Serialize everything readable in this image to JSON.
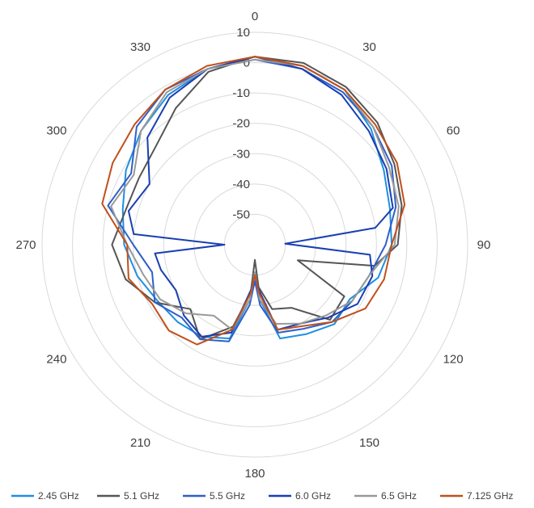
{
  "chart_data": {
    "type": "radar",
    "theta_labels": [
      "0",
      "30",
      "60",
      "90",
      "120",
      "150",
      "180",
      "210",
      "240",
      "270",
      "300",
      "330"
    ],
    "r_ticks": [
      "10",
      "0",
      "-10",
      "-20",
      "-30",
      "-40",
      "-50"
    ],
    "rlim": [
      -60,
      10
    ],
    "grid": true,
    "legend_position": "bottom",
    "series": [
      {
        "name": "2.45 GHz",
        "color": "#1f8fe0",
        "points": [
          [
            0,
            2
          ],
          [
            15,
            1
          ],
          [
            30,
            -1
          ],
          [
            45,
            -6
          ],
          [
            60,
            -11
          ],
          [
            75,
            -14
          ],
          [
            90,
            -15
          ],
          [
            105,
            -18
          ],
          [
            120,
            -24
          ],
          [
            135,
            -23
          ],
          [
            150,
            -26
          ],
          [
            165,
            -28
          ],
          [
            175,
            -42
          ],
          [
            180,
            -50
          ],
          [
            185,
            -42
          ],
          [
            195,
            -28
          ],
          [
            210,
            -25
          ],
          [
            225,
            -24
          ],
          [
            240,
            -23
          ],
          [
            255,
            -20
          ],
          [
            270,
            -17
          ],
          [
            285,
            -15
          ],
          [
            300,
            -11
          ],
          [
            315,
            -7
          ],
          [
            330,
            -3
          ],
          [
            345,
            0
          ]
        ]
      },
      {
        "name": "5.1 GHz",
        "color": "#555555",
        "points": [
          [
            0,
            2
          ],
          [
            15,
            2
          ],
          [
            30,
            0
          ],
          [
            45,
            -3
          ],
          [
            60,
            -7
          ],
          [
            75,
            -10
          ],
          [
            90,
            -13
          ],
          [
            100,
            -20
          ],
          [
            110,
            -45
          ],
          [
            120,
            -26
          ],
          [
            135,
            -25
          ],
          [
            150,
            -36
          ],
          [
            165,
            -38
          ],
          [
            175,
            -46
          ],
          [
            180,
            -55
          ],
          [
            185,
            -44
          ],
          [
            195,
            -32
          ],
          [
            210,
            -24
          ],
          [
            225,
            -30
          ],
          [
            240,
            -22
          ],
          [
            255,
            -16
          ],
          [
            270,
            -13
          ],
          [
            285,
            -16
          ],
          [
            300,
            -16
          ],
          [
            315,
            -14
          ],
          [
            330,
            -8
          ],
          [
            345,
            -1
          ]
        ]
      },
      {
        "name": "5.5 GHz",
        "color": "#2e60c8",
        "points": [
          [
            0,
            1
          ],
          [
            15,
            0
          ],
          [
            30,
            -2
          ],
          [
            45,
            -5
          ],
          [
            60,
            -8
          ],
          [
            75,
            -12
          ],
          [
            90,
            -17
          ],
          [
            105,
            -21
          ],
          [
            120,
            -23
          ],
          [
            135,
            -24
          ],
          [
            150,
            -28
          ],
          [
            165,
            -30
          ],
          [
            175,
            -40
          ],
          [
            180,
            -48
          ],
          [
            185,
            -40
          ],
          [
            195,
            -27
          ],
          [
            210,
            -24
          ],
          [
            225,
            -26
          ],
          [
            240,
            -22
          ],
          [
            255,
            -25
          ],
          [
            270,
            -20
          ],
          [
            285,
            -10
          ],
          [
            300,
            -13
          ],
          [
            315,
            -5
          ],
          [
            330,
            -1
          ],
          [
            345,
            0
          ]
        ]
      },
      {
        "name": "6.0 GHz",
        "color": "#1a3fb0",
        "points": [
          [
            0,
            2
          ],
          [
            15,
            0
          ],
          [
            30,
            -3
          ],
          [
            45,
            -7
          ],
          [
            60,
            -10
          ],
          [
            75,
            -13
          ],
          [
            82,
            -20
          ],
          [
            88,
            -50
          ],
          [
            95,
            -22
          ],
          [
            105,
            -20
          ],
          [
            120,
            -21
          ],
          [
            135,
            -26
          ],
          [
            150,
            -30
          ],
          [
            165,
            -31
          ],
          [
            175,
            -45
          ],
          [
            180,
            -50
          ],
          [
            185,
            -45
          ],
          [
            195,
            -30
          ],
          [
            210,
            -25
          ],
          [
            225,
            -27
          ],
          [
            240,
            -30
          ],
          [
            255,
            -28
          ],
          [
            265,
            -27
          ],
          [
            270,
            -50
          ],
          [
            275,
            -20
          ],
          [
            285,
            -17
          ],
          [
            300,
            -20
          ],
          [
            315,
            -10
          ],
          [
            330,
            -4
          ],
          [
            345,
            0
          ]
        ]
      },
      {
        "name": "6.5 GHz",
        "color": "#999999",
        "points": [
          [
            0,
            1
          ],
          [
            15,
            1
          ],
          [
            30,
            -1
          ],
          [
            45,
            -5
          ],
          [
            60,
            -9
          ],
          [
            75,
            -11
          ],
          [
            90,
            -14
          ],
          [
            105,
            -21
          ],
          [
            120,
            -23
          ],
          [
            135,
            -27
          ],
          [
            150,
            -30
          ],
          [
            165,
            -33
          ],
          [
            175,
            -42
          ],
          [
            180,
            -51
          ],
          [
            185,
            -42
          ],
          [
            195,
            -31
          ],
          [
            210,
            -33
          ],
          [
            225,
            -28
          ],
          [
            240,
            -24
          ],
          [
            255,
            -22
          ],
          [
            270,
            -18
          ],
          [
            285,
            -11
          ],
          [
            300,
            -14
          ],
          [
            315,
            -7
          ],
          [
            330,
            -2
          ],
          [
            345,
            0
          ]
        ]
      },
      {
        "name": "7.125 GHz",
        "color": "#c0501c",
        "points": [
          [
            0,
            2
          ],
          [
            15,
            1
          ],
          [
            30,
            -1
          ],
          [
            45,
            -4
          ],
          [
            60,
            -6
          ],
          [
            75,
            -9
          ],
          [
            90,
            -15
          ],
          [
            105,
            -16
          ],
          [
            120,
            -18
          ],
          [
            135,
            -24
          ],
          [
            150,
            -29
          ],
          [
            165,
            -31
          ],
          [
            175,
            -44
          ],
          [
            180,
            -50
          ],
          [
            185,
            -44
          ],
          [
            195,
            -31
          ],
          [
            210,
            -22
          ],
          [
            225,
            -20
          ],
          [
            240,
            -21
          ],
          [
            255,
            -17
          ],
          [
            270,
            -18
          ],
          [
            285,
            -8
          ],
          [
            300,
            -6
          ],
          [
            315,
            -4
          ],
          [
            330,
            -1
          ],
          [
            345,
            1
          ]
        ]
      }
    ]
  }
}
